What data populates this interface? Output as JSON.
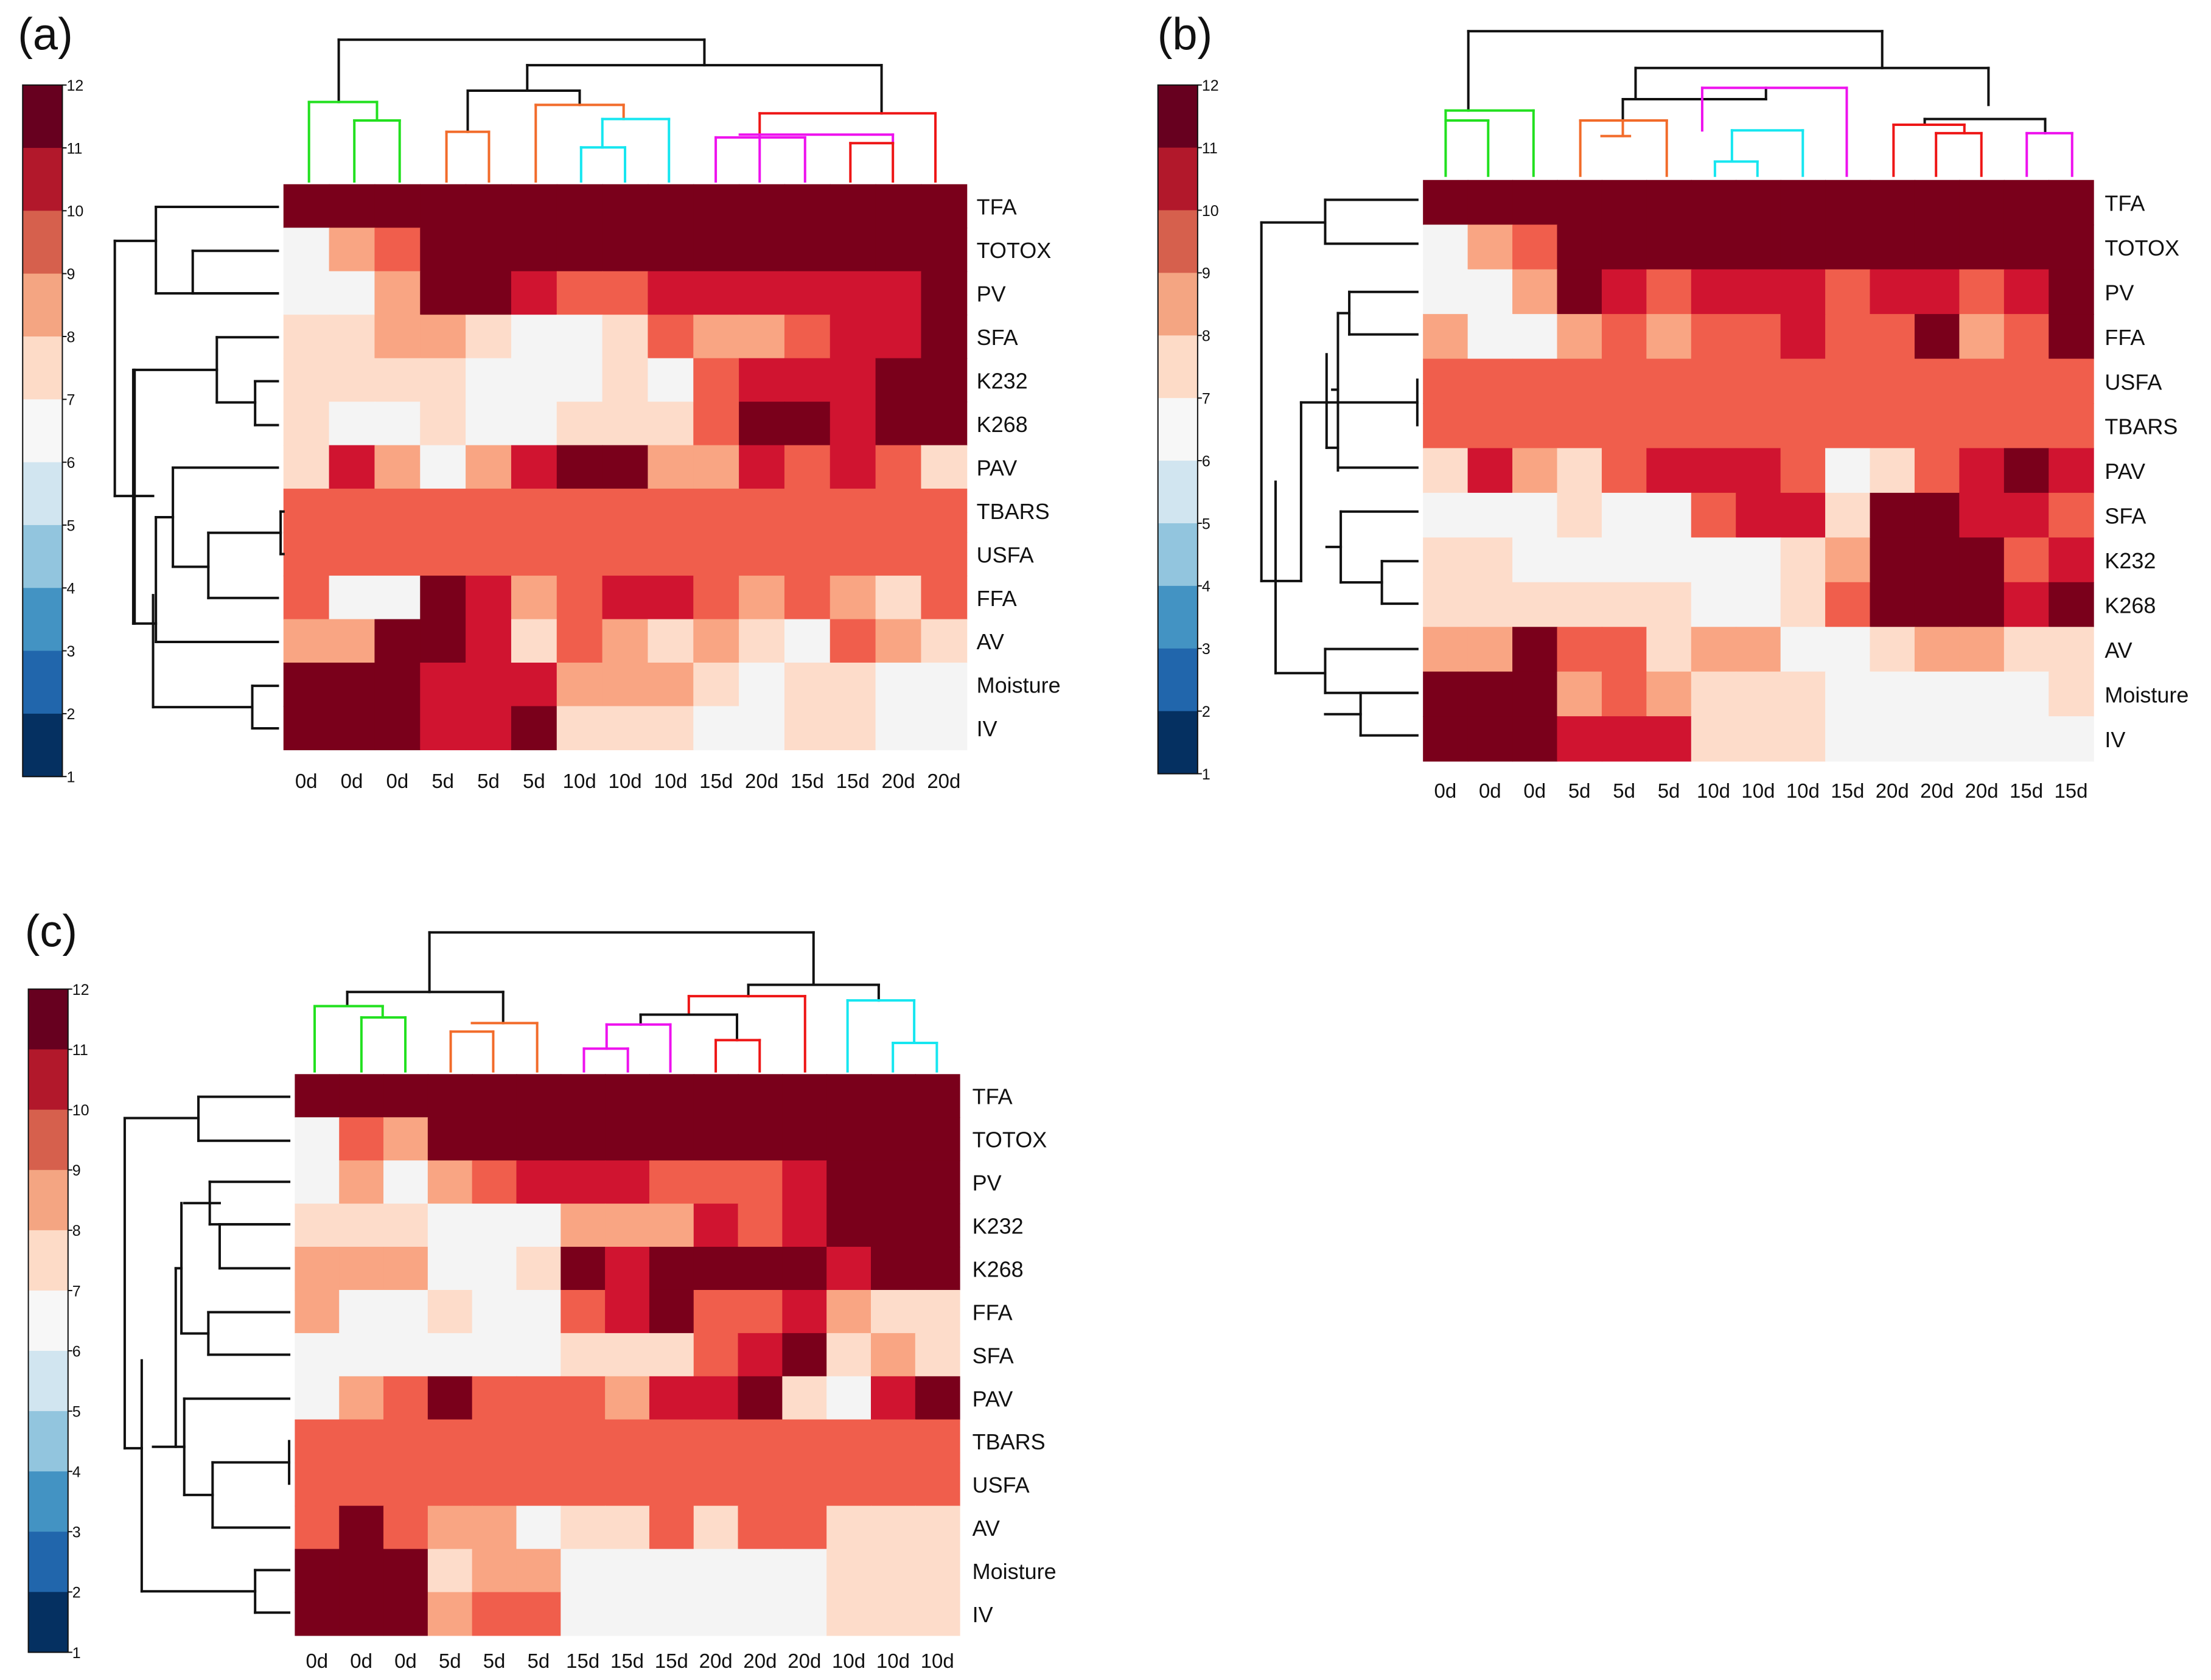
{
  "colors": {
    "scale": [
      "#053061",
      "#2166ac",
      "#4393c3",
      "#92c5de",
      "#d1e5f0",
      "#f7f7f7",
      "#fddbc7",
      "#f4a582",
      "#d6604d",
      "#b2182b",
      "#67001f"
    ],
    "scale_used": {
      "6": "#f4f4f4",
      "7": "#fddcca",
      "8": "#f9a583",
      "9": "#f05e4c",
      "10": "#d01430",
      "11": "#7a001b"
    },
    "dendrogram": {
      "black": "#111111",
      "green": "#22e01f",
      "orange": "#f26b2a",
      "cyan": "#16e6f0",
      "magenta": "#ee12ee",
      "red": "#ee1616"
    }
  },
  "chart_data": [
    {
      "type": "heatmap",
      "panel_label": "(a)",
      "rows": [
        "TFA",
        "TOTOX",
        "PV",
        "SFA",
        "K232",
        "K268",
        "PAV",
        "TBARS",
        "USFA",
        "FFA",
        "AV",
        "Moisture",
        "IV"
      ],
      "columns": [
        "0d",
        "0d",
        "0d",
        "5d",
        "5d",
        "5d",
        "10d",
        "10d",
        "10d",
        "15d",
        "20d",
        "15d",
        "15d",
        "20d",
        "20d"
      ],
      "values": [
        [
          11,
          11,
          11,
          11,
          11,
          11,
          11,
          11,
          11,
          11,
          11,
          11,
          11,
          11,
          11
        ],
        [
          6,
          8,
          9,
          11,
          11,
          11,
          11,
          11,
          11,
          11,
          11,
          11,
          11,
          11,
          11
        ],
        [
          6,
          6,
          8,
          11,
          11,
          10,
          9,
          9,
          10,
          10,
          10,
          10,
          10,
          10,
          11
        ],
        [
          7,
          7,
          8,
          8,
          7,
          6,
          6,
          7,
          9,
          8,
          8,
          9,
          10,
          10,
          11
        ],
        [
          7,
          7,
          7,
          7,
          6,
          6,
          6,
          7,
          6,
          9,
          10,
          10,
          10,
          11,
          11
        ],
        [
          7,
          6,
          6,
          7,
          6,
          6,
          7,
          7,
          7,
          9,
          11,
          11,
          10,
          11,
          11
        ],
        [
          7,
          10,
          8,
          6,
          8,
          10,
          11,
          11,
          8,
          8,
          10,
          9,
          10,
          9,
          7
        ],
        [
          9,
          9,
          9,
          9,
          9,
          9,
          9,
          9,
          9,
          9,
          9,
          9,
          9,
          9,
          9
        ],
        [
          9,
          9,
          9,
          9,
          9,
          9,
          9,
          9,
          9,
          9,
          9,
          9,
          9,
          9,
          9
        ],
        [
          9,
          6,
          6,
          11,
          10,
          8,
          9,
          10,
          10,
          9,
          8,
          9,
          8,
          7,
          9
        ],
        [
          8,
          8,
          11,
          11,
          10,
          7,
          9,
          8,
          7,
          8,
          7,
          6,
          9,
          8,
          7
        ],
        [
          11,
          11,
          11,
          10,
          10,
          10,
          8,
          8,
          8,
          7,
          6,
          7,
          7,
          6,
          6
        ],
        [
          11,
          11,
          11,
          10,
          10,
          11,
          7,
          7,
          7,
          6,
          6,
          7,
          7,
          6,
          6
        ]
      ],
      "colorbar": {
        "ticks": [
          1,
          2,
          3,
          4,
          5,
          6,
          7,
          8,
          9,
          10,
          11,
          12
        ]
      }
    },
    {
      "type": "heatmap",
      "panel_label": "(b)",
      "rows": [
        "TFA",
        "TOTOX",
        "PV",
        "FFA",
        "USFA",
        "TBARS",
        "PAV",
        "SFA",
        "K232",
        "K268",
        "AV",
        "Moisture",
        "IV"
      ],
      "columns": [
        "0d",
        "0d",
        "0d",
        "5d",
        "5d",
        "5d",
        "10d",
        "10d",
        "10d",
        "15d",
        "20d",
        "20d",
        "20d",
        "15d",
        "15d"
      ],
      "values": [
        [
          11,
          11,
          11,
          11,
          11,
          11,
          11,
          11,
          11,
          11,
          11,
          11,
          11,
          11,
          11
        ],
        [
          6,
          8,
          9,
          11,
          11,
          11,
          11,
          11,
          11,
          11,
          11,
          11,
          11,
          11,
          11
        ],
        [
          6,
          6,
          8,
          11,
          10,
          9,
          10,
          10,
          10,
          9,
          10,
          10,
          9,
          10,
          11
        ],
        [
          8,
          6,
          6,
          8,
          9,
          8,
          9,
          9,
          10,
          9,
          9,
          11,
          8,
          9,
          11
        ],
        [
          9,
          9,
          9,
          9,
          9,
          9,
          9,
          9,
          9,
          9,
          9,
          9,
          9,
          9,
          9
        ],
        [
          9,
          9,
          9,
          9,
          9,
          9,
          9,
          9,
          9,
          9,
          9,
          9,
          9,
          9,
          9
        ],
        [
          7,
          10,
          8,
          7,
          9,
          10,
          10,
          10,
          9,
          6,
          7,
          9,
          10,
          11,
          10
        ],
        [
          6,
          6,
          6,
          7,
          6,
          6,
          9,
          10,
          10,
          7,
          11,
          11,
          10,
          10,
          9
        ],
        [
          7,
          7,
          6,
          6,
          6,
          6,
          6,
          6,
          7,
          8,
          11,
          11,
          11,
          9,
          10
        ],
        [
          7,
          7,
          7,
          7,
          7,
          7,
          6,
          6,
          7,
          9,
          11,
          11,
          11,
          10,
          11
        ],
        [
          8,
          8,
          11,
          9,
          9,
          7,
          8,
          8,
          6,
          6,
          7,
          8,
          8,
          7,
          7
        ],
        [
          11,
          11,
          11,
          8,
          9,
          8,
          7,
          7,
          7,
          6,
          6,
          6,
          6,
          6,
          7
        ],
        [
          11,
          11,
          11,
          10,
          10,
          10,
          7,
          7,
          7,
          6,
          6,
          6,
          6,
          6,
          6
        ]
      ],
      "colorbar": {
        "ticks": [
          1,
          2,
          3,
          4,
          5,
          6,
          7,
          8,
          9,
          10,
          11,
          12
        ]
      }
    },
    {
      "type": "heatmap",
      "panel_label": "(c)",
      "rows": [
        "TFA",
        "TOTOX",
        "PV",
        "K232",
        "K268",
        "FFA",
        "SFA",
        "PAV",
        "TBARS",
        "USFA",
        "AV",
        "Moisture",
        "IV"
      ],
      "columns": [
        "0d",
        "0d",
        "0d",
        "5d",
        "5d",
        "5d",
        "15d",
        "15d",
        "15d",
        "20d",
        "20d",
        "20d",
        "10d",
        "10d",
        "10d"
      ],
      "values": [
        [
          11,
          11,
          11,
          11,
          11,
          11,
          11,
          11,
          11,
          11,
          11,
          11,
          11,
          11,
          11
        ],
        [
          6,
          9,
          8,
          11,
          11,
          11,
          11,
          11,
          11,
          11,
          11,
          11,
          11,
          11,
          11
        ],
        [
          6,
          8,
          6,
          8,
          9,
          10,
          10,
          10,
          9,
          9,
          9,
          10,
          11,
          11,
          11
        ],
        [
          7,
          7,
          7,
          6,
          6,
          6,
          8,
          8,
          8,
          10,
          9,
          10,
          11,
          11,
          11
        ],
        [
          8,
          8,
          8,
          6,
          6,
          7,
          11,
          10,
          11,
          11,
          11,
          11,
          10,
          11,
          11
        ],
        [
          8,
          6,
          6,
          7,
          6,
          6,
          9,
          10,
          11,
          9,
          9,
          10,
          8,
          7,
          7
        ],
        [
          6,
          6,
          6,
          6,
          6,
          6,
          7,
          7,
          7,
          9,
          10,
          11,
          7,
          8,
          7
        ],
        [
          6,
          8,
          9,
          11,
          9,
          9,
          9,
          8,
          10,
          10,
          11,
          7,
          6,
          10,
          11
        ],
        [
          9,
          9,
          9,
          9,
          9,
          9,
          9,
          9,
          9,
          9,
          9,
          9,
          9,
          9,
          9
        ],
        [
          9,
          9,
          9,
          9,
          9,
          9,
          9,
          9,
          9,
          9,
          9,
          9,
          9,
          9,
          9
        ],
        [
          9,
          11,
          9,
          8,
          8,
          6,
          7,
          7,
          9,
          7,
          9,
          9,
          7,
          7,
          7
        ],
        [
          11,
          11,
          11,
          7,
          8,
          8,
          6,
          6,
          6,
          6,
          6,
          6,
          7,
          7,
          7
        ],
        [
          11,
          11,
          11,
          8,
          9,
          9,
          6,
          6,
          6,
          6,
          6,
          6,
          7,
          7,
          7
        ]
      ],
      "colorbar": {
        "ticks": [
          1,
          2,
          3,
          4,
          5,
          6,
          7,
          8,
          9,
          10,
          11,
          12
        ]
      }
    }
  ]
}
